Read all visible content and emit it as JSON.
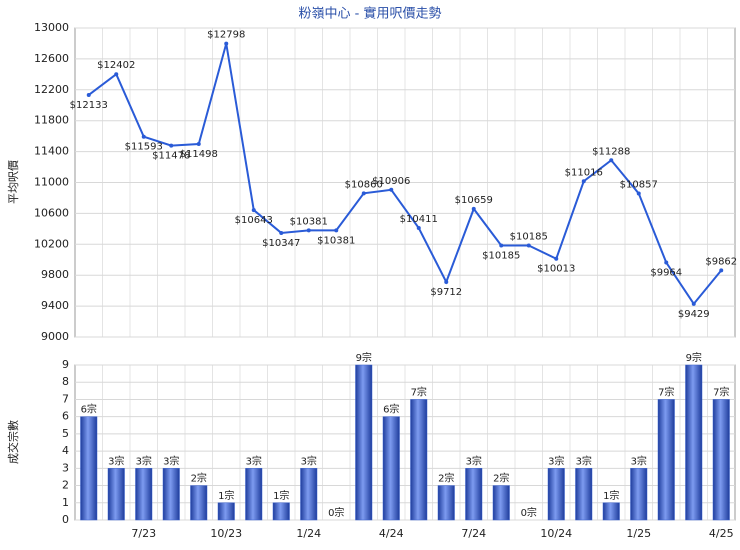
{
  "chart_data": [
    {
      "type": "line",
      "title": "粉嶺中心 - 實用呎價走勢",
      "ylabel": "平均呎價",
      "color": "#2a5bd7",
      "values": [
        12133,
        12402,
        11593,
        11478,
        11498,
        12798,
        10643,
        10347,
        10381,
        10381,
        10860,
        10906,
        10411,
        9712,
        10659,
        10185,
        10185,
        10013,
        11016,
        11288,
        10857,
        9964,
        9429,
        9862
      ],
      "value_labels": [
        "$12133",
        "$12402",
        "$11593",
        "$11478",
        "$11498",
        "$12798",
        "$10643",
        "$10347",
        "$10381",
        "$10381",
        "$10860",
        "$10906",
        "$10411",
        "$9712",
        "$10659",
        "$10185",
        "$10185",
        "$10013",
        "$11016",
        "$11288",
        "$10857",
        "$9964",
        "$9429",
        "$9862"
      ],
      "ylim": [
        9000,
        13000
      ],
      "yticks": [
        9000,
        9400,
        9800,
        10200,
        10600,
        11000,
        11400,
        11800,
        12200,
        12600,
        13000
      ],
      "grid": true
    },
    {
      "type": "bar",
      "ylabel": "成交宗數",
      "color": "#3b62cf",
      "categories": [
        null,
        null,
        "7/23",
        null,
        null,
        "10/23",
        null,
        null,
        "1/24",
        null,
        null,
        "4/24",
        null,
        null,
        "7/24",
        null,
        null,
        "10/24",
        null,
        null,
        "1/25",
        null,
        null,
        "4/25"
      ],
      "values": [
        6,
        3,
        3,
        3,
        2,
        1,
        3,
        1,
        3,
        0,
        9,
        6,
        7,
        2,
        3,
        2,
        0,
        3,
        3,
        1,
        3,
        7,
        9,
        7
      ],
      "value_labels": [
        "6宗",
        "3宗",
        "3宗",
        "3宗",
        "2宗",
        "1宗",
        "3宗",
        "1宗",
        "3宗",
        "0宗",
        "9宗",
        "6宗",
        "7宗",
        "2宗",
        "3宗",
        "2宗",
        "0宗",
        "3宗",
        "3宗",
        "1宗",
        "3宗",
        "7宗",
        "9宗",
        "7宗"
      ],
      "ylim": [
        0,
        9
      ],
      "yticks": [
        0,
        1,
        2,
        3,
        4,
        5,
        6,
        7,
        8,
        9
      ],
      "grid": true
    }
  ]
}
